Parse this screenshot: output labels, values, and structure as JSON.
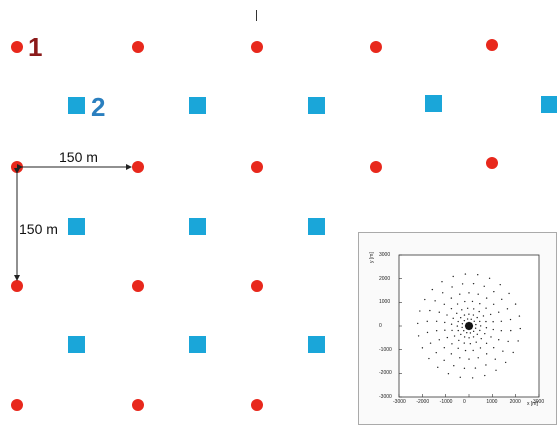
{
  "grid": {
    "label_1": "1",
    "label_2": "2",
    "spacing_horizontal_label": "150 m",
    "spacing_vertical_label": "150 m",
    "colors": {
      "station_1": "#e8281c",
      "station_2": "#1aa6d9",
      "label_1": "#8b1a1a",
      "label_2": "#2a7fbf"
    }
  },
  "inset": {
    "ylabel": "y [m]",
    "xlabel": "x [m]",
    "y_ticks": [
      "3000",
      "2000",
      "1000",
      "0",
      "-1000",
      "-2000",
      "-3000"
    ],
    "x_ticks": [
      "-3000",
      "-2000",
      "-1000",
      "0",
      "1000",
      "2000",
      "3000"
    ]
  },
  "chart_data": {
    "type": "scatter",
    "title": "",
    "xlabel": "x [m]",
    "ylabel": "y [m]",
    "xlim": [
      -3000,
      3000
    ],
    "ylim": [
      -3000,
      3000
    ],
    "grid": false,
    "pattern": "concentric rings of points around (0,0), denser toward center",
    "rings": [
      {
        "radius": 150,
        "count": 8
      },
      {
        "radius": 300,
        "count": 12
      },
      {
        "radius": 500,
        "count": 16
      },
      {
        "radius": 750,
        "count": 18
      },
      {
        "radius": 1050,
        "count": 20
      },
      {
        "radius": 1400,
        "count": 22
      },
      {
        "radius": 1800,
        "count": 24
      },
      {
        "radius": 2200,
        "count": 26
      }
    ]
  }
}
